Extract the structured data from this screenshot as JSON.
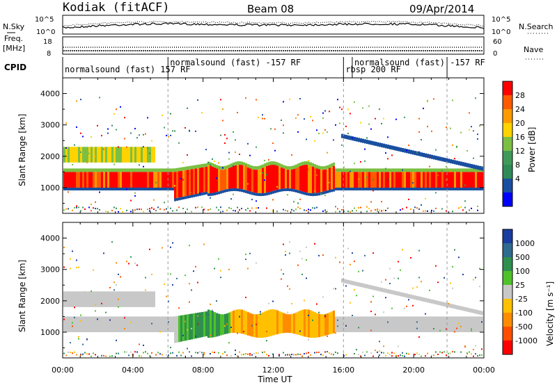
{
  "header": {
    "station": "Kodiak (fitACF)",
    "beam": "Beam 08",
    "date": "09/Apr/2014"
  },
  "noise_panel": {
    "left_label": "N.Sky",
    "left_ticks": [
      "10^5",
      "10^0"
    ],
    "right_label": "N.Search",
    "right_ticks": [
      "10^5",
      "10^0"
    ]
  },
  "freq_panel": {
    "left_label_1": "Freq.",
    "left_label_2": "[MHz]",
    "left_ticks": [
      "18",
      "8"
    ],
    "right_label": "Nave",
    "right_ticks": [
      "60",
      "0"
    ]
  },
  "cpid": {
    "label": "CPID",
    "segments": [
      {
        "start_hour": 0.0,
        "end_hour": 6.0,
        "text": "normalsound (fast) 157 RF",
        "row": 1
      },
      {
        "start_hour": 6.0,
        "end_hour": 16.0,
        "text": "normalsound (fast) -157 RF",
        "row": 0
      },
      {
        "start_hour": 16.0,
        "end_hour": 16.5,
        "text": "rbsp 200 RF",
        "row": 1
      },
      {
        "start_hour": 16.5,
        "end_hour": 21.9,
        "text": "normalsound (fast) -157 RF",
        "row": 0
      }
    ]
  },
  "colorbars": {
    "power": {
      "title": "Power [dB]",
      "ticks": [
        "28",
        "24",
        "20",
        "16",
        "12",
        "8",
        "4"
      ],
      "colors": [
        "#ff0000",
        "#ff5a00",
        "#ff9900",
        "#ffd200",
        "#7bc043",
        "#3f9a5a",
        "#2e8b57",
        "#1a4fa0",
        "#0000ff"
      ]
    },
    "velocity": {
      "title": "Velocity [m s⁻¹]",
      "ticks": [
        "1000",
        "500",
        "100",
        "25",
        "-25",
        "-100",
        "-500",
        "-1000"
      ],
      "colors": [
        "#1a3da0",
        "#2e6b8f",
        "#2f8f4f",
        "#4fc22b",
        "#c8c8c8",
        "#ffc000",
        "#ff8c00",
        "#ff4d00",
        "#ff0000"
      ]
    }
  },
  "chart_data": [
    {
      "type": "heatmap",
      "title": "Power",
      "ylabel": "Slant Range [km]",
      "xlabel": "Time UT",
      "xlim": [
        "00:00",
        "24:00"
      ],
      "ylim": [
        180,
        4500
      ],
      "x_ticks": [
        "00:00",
        "04:00",
        "08:00",
        "12:00",
        "16:00",
        "20:00",
        "00:00"
      ],
      "y_ticks": [
        "1000",
        "2000",
        "3000",
        "4000"
      ],
      "color_scale": "Power [dB]",
      "features": [
        {
          "name": "main echo band",
          "start_hour": 0,
          "end_hour": 24,
          "range_km": [
            1000,
            1600
          ],
          "power_db": 24
        },
        {
          "name": "upper band",
          "start_hour": 0,
          "end_hour": 5,
          "range_km": [
            1800,
            2300
          ],
          "power_db": 14
        }
      ]
    },
    {
      "type": "heatmap",
      "title": "Velocity",
      "ylabel": "Slant Range [km]",
      "xlabel": "Time UT",
      "xlim": [
        "00:00",
        "24:00"
      ],
      "ylim": [
        180,
        4500
      ],
      "x_ticks": [
        "00:00",
        "04:00",
        "08:00",
        "12:00",
        "16:00",
        "20:00",
        "00:00"
      ],
      "y_ticks": [
        "1000",
        "2000",
        "3000",
        "4000"
      ],
      "color_scale": "Velocity [m s^-1]",
      "features": [
        {
          "name": "ground scatter band",
          "start_hour": 0,
          "end_hour": 24,
          "range_km": [
            1000,
            1500
          ],
          "velocity": 0
        },
        {
          "name": "positive velocity region",
          "start_hour": 6.5,
          "end_hour": 9.5,
          "range_km": [
            800,
            1700
          ],
          "velocity": 150
        },
        {
          "name": "negative velocity region",
          "start_hour": 9.5,
          "end_hour": 15.5,
          "range_km": [
            1000,
            1700
          ],
          "velocity": -120
        }
      ]
    }
  ],
  "xaxis_title": "Time UT",
  "xaxis_ticks": [
    "00:00",
    "04:00",
    "08:00",
    "12:00",
    "16:00",
    "20:00",
    "00:00"
  ]
}
